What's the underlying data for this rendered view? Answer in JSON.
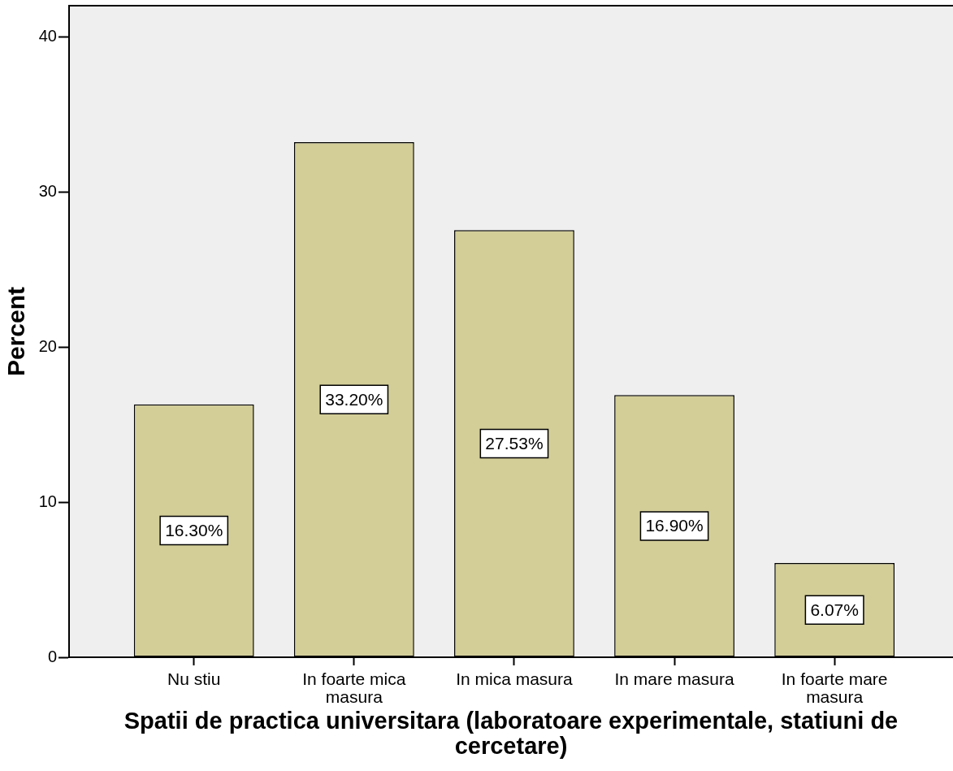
{
  "chart_data": {
    "type": "bar",
    "xlabel": "Spatii de practica universitara (laboratoare experimentale, statiuni de cercetare)",
    "ylabel": "Percent",
    "categories": [
      "Nu stiu",
      "In foarte mica masura",
      "In mica masura",
      "In mare masura",
      "In foarte mare masura"
    ],
    "values": [
      16.3,
      33.2,
      27.53,
      16.9,
      6.07
    ],
    "value_labels": [
      "16.30%",
      "33.20%",
      "27.53%",
      "16.90%",
      "6.07%"
    ],
    "color": "#d3ce98",
    "ylim": [
      0,
      42
    ],
    "yticks": [
      0,
      10,
      20,
      30,
      40
    ]
  }
}
